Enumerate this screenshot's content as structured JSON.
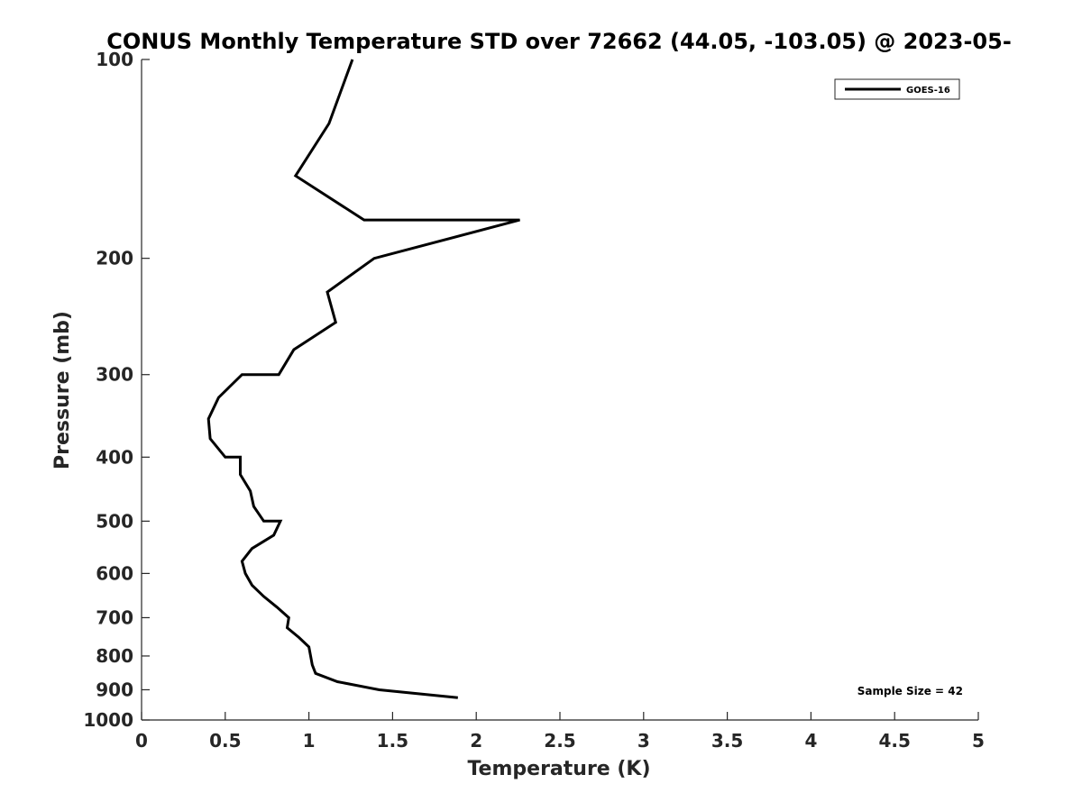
{
  "chart_data": {
    "type": "line",
    "title": "CONUS Monthly Temperature STD over 72662 (44.05, -103.05) @ 2023-05-",
    "xlabel": "Temperature (K)",
    "ylabel": "Pressure (mb)",
    "xlim": [
      0,
      5
    ],
    "ylim": [
      1000,
      100
    ],
    "y_scale": "log",
    "y_reversed": true,
    "grid": false,
    "legend_position": "top-right",
    "x_ticks": [
      0,
      0.5,
      1,
      1.5,
      2,
      2.5,
      3,
      3.5,
      4,
      4.5,
      5
    ],
    "x_tick_labels": [
      "0",
      "0.5",
      "1",
      "1.5",
      "2",
      "2.5",
      "3",
      "3.5",
      "4",
      "4.5",
      "5"
    ],
    "y_ticks": [
      100,
      200,
      300,
      400,
      500,
      600,
      700,
      800,
      900,
      1000
    ],
    "y_tick_labels": [
      "100",
      "200",
      "300",
      "400",
      "500",
      "600",
      "700",
      "800",
      "900",
      "1000"
    ],
    "annotation": "Sample Size = 42",
    "series": [
      {
        "name": "GOES-16",
        "color": "#000000",
        "points": [
          {
            "x": 1.26,
            "p": 100
          },
          {
            "x": 1.12,
            "p": 125
          },
          {
            "x": 0.92,
            "p": 150
          },
          {
            "x": 1.33,
            "p": 175
          },
          {
            "x": 2.26,
            "p": 175
          },
          {
            "x": 1.39,
            "p": 200
          },
          {
            "x": 1.11,
            "p": 225
          },
          {
            "x": 1.16,
            "p": 250
          },
          {
            "x": 0.91,
            "p": 275
          },
          {
            "x": 0.82,
            "p": 300
          },
          {
            "x": 0.6,
            "p": 300
          },
          {
            "x": 0.46,
            "p": 325
          },
          {
            "x": 0.4,
            "p": 350
          },
          {
            "x": 0.41,
            "p": 375
          },
          {
            "x": 0.5,
            "p": 400
          },
          {
            "x": 0.59,
            "p": 400
          },
          {
            "x": 0.59,
            "p": 425
          },
          {
            "x": 0.65,
            "p": 450
          },
          {
            "x": 0.67,
            "p": 475
          },
          {
            "x": 0.73,
            "p": 500
          },
          {
            "x": 0.83,
            "p": 500
          },
          {
            "x": 0.79,
            "p": 525
          },
          {
            "x": 0.66,
            "p": 550
          },
          {
            "x": 0.6,
            "p": 575
          },
          {
            "x": 0.62,
            "p": 600
          },
          {
            "x": 0.66,
            "p": 625
          },
          {
            "x": 0.73,
            "p": 650
          },
          {
            "x": 0.81,
            "p": 675
          },
          {
            "x": 0.88,
            "p": 700
          },
          {
            "x": 0.87,
            "p": 725
          },
          {
            "x": 0.94,
            "p": 750
          },
          {
            "x": 1.0,
            "p": 775
          },
          {
            "x": 1.01,
            "p": 800
          },
          {
            "x": 1.02,
            "p": 825
          },
          {
            "x": 1.04,
            "p": 850
          },
          {
            "x": 1.17,
            "p": 875
          },
          {
            "x": 1.42,
            "p": 900
          },
          {
            "x": 1.89,
            "p": 925
          }
        ]
      }
    ]
  }
}
